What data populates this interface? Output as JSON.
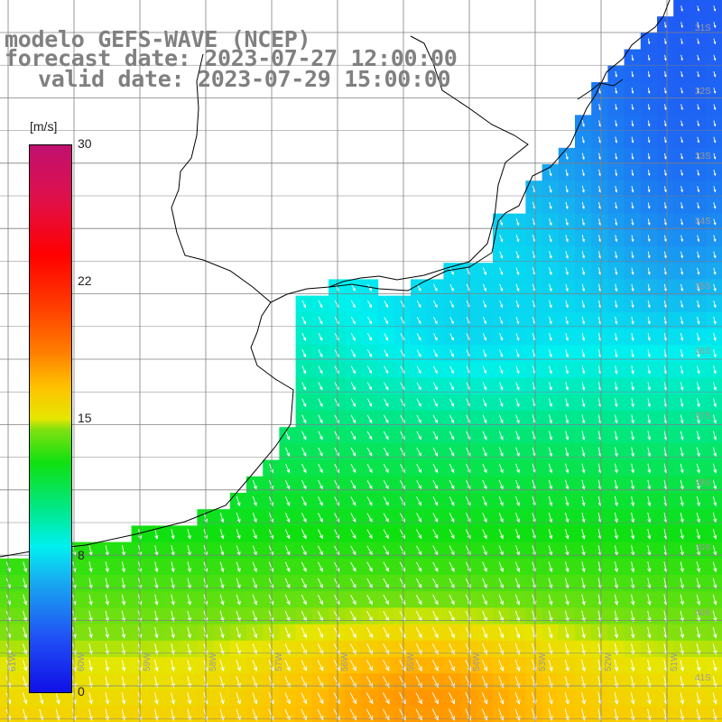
{
  "title": {
    "line1": "modelo GEFS-WAVE (NCEP)",
    "line2": "forecast date: 2023-07-27 12:00:00",
    "line3": "valid date: 2023-07-29 15:00:00"
  },
  "colorbar": {
    "units": "[m/s]",
    "min": 0,
    "max": 30,
    "ticks": [
      "30",
      "22",
      "15",
      "8",
      "0"
    ]
  },
  "lon_labels": [
    "61W",
    "60W",
    "59W",
    "58W",
    "57W",
    "56W",
    "55W",
    "54W",
    "53W",
    "52W",
    "51W"
  ],
  "lat_labels": [
    "31S",
    "32S",
    "33S",
    "34S",
    "35S",
    "36S",
    "37S",
    "38S",
    "39S",
    "40S",
    "41S"
  ],
  "colors": {
    "land": "#ffffff",
    "coast": "#000000",
    "grid": "#808080",
    "arrow": "#ffffff"
  }
}
